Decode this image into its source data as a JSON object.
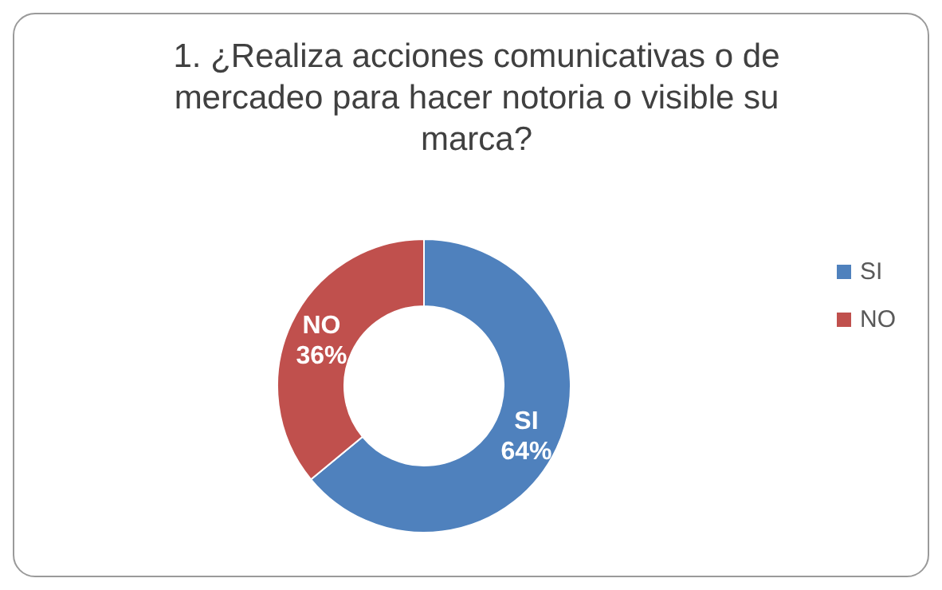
{
  "chart_data": {
    "type": "donut",
    "title": "1. ¿Realiza acciones comunicativas o de mercadeo para hacer notoria o visible su marca?",
    "categories": [
      "SI",
      "NO"
    ],
    "values": [
      64,
      36
    ],
    "colors": [
      "#4f81bd",
      "#c0504d"
    ],
    "value_labels": [
      "64%",
      "36%"
    ],
    "legend": "right"
  }
}
